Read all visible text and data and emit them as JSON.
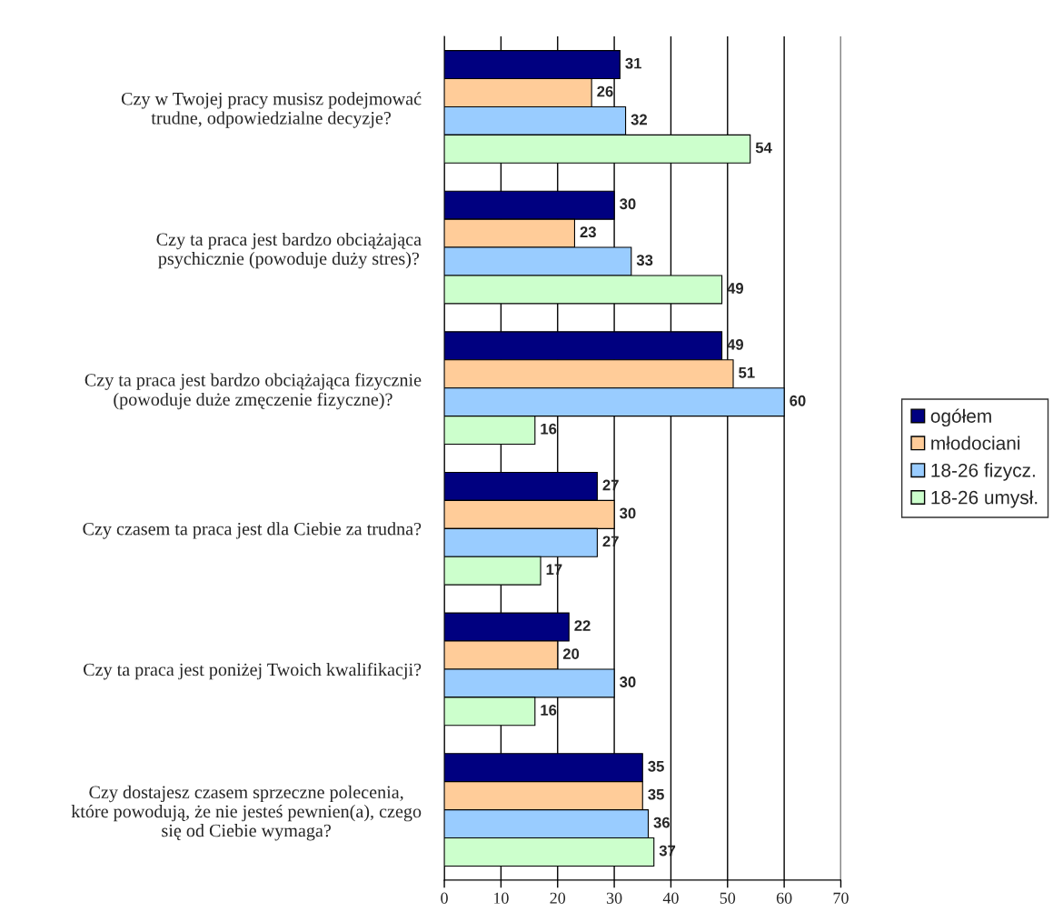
{
  "chart_data": {
    "type": "bar",
    "orientation": "horizontal",
    "categories": [
      "Czy w Twojej pracy musisz podejmować\ntrudne, odpowiedzialne decyzje?",
      "Czy ta praca jest bardzo obciążająca\npsychicznie (powoduje duży stres)?",
      "Czy ta praca jest bardzo obciążająca fizycznie\n(powoduje duże zmęczenie fizyczne)?",
      "Czy czasem ta praca jest dla Ciebie za trudna?",
      "Czy ta praca jest poniżej Twoich kwalifikacji?",
      "Czy dostajesz czasem sprzeczne polecenia,\nktóre powodują, że nie jesteś pewnien(a), czego\nsię od Ciebie wymaga?"
    ],
    "series": [
      {
        "name": "ogółem",
        "color": "#000080",
        "values": [
          31,
          30,
          49,
          27,
          22,
          35
        ]
      },
      {
        "name": "młodociani",
        "color": "#ffcc99",
        "values": [
          26,
          23,
          51,
          30,
          20,
          35
        ]
      },
      {
        "name": "18-26 fizycz.",
        "color": "#99ccff",
        "values": [
          32,
          33,
          60,
          27,
          30,
          36
        ]
      },
      {
        "name": "18-26 umysł.",
        "color": "#ccffcc",
        "values": [
          54,
          49,
          16,
          17,
          16,
          37
        ]
      }
    ],
    "xlim": [
      0,
      70
    ],
    "xticks": [
      0,
      10,
      20,
      30,
      40,
      50,
      60,
      70
    ],
    "grid": "x",
    "legend": "right",
    "data_labels": true
  }
}
